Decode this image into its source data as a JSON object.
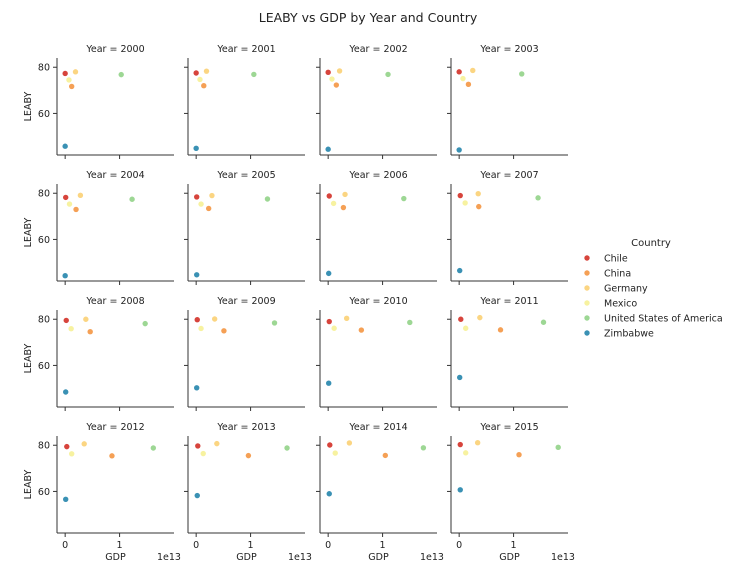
{
  "chart_data": {
    "type": "scatter",
    "title": "LEABY vs GDP by Year and Country",
    "xlabel": "GDP",
    "ylabel": "LEABY",
    "x_offset_label": "1e13",
    "x_unit": 10000000000000.0,
    "xlim": [
      -0.15,
      2.0
    ],
    "ylim": [
      42,
      84
    ],
    "x_ticks": [
      0,
      1
    ],
    "y_ticks": [
      60,
      80
    ],
    "grid": false,
    "legend_title": "Country",
    "legend_position": "right",
    "series": [
      {
        "name": "Chile",
        "color": "#d7443c"
      },
      {
        "name": "China",
        "color": "#f5a055"
      },
      {
        "name": "Germany",
        "color": "#fbd582"
      },
      {
        "name": "Mexico",
        "color": "#f7f2a0"
      },
      {
        "name": "United States of America",
        "color": "#9dd794"
      },
      {
        "name": "Zimbabwe",
        "color": "#3a91b4"
      }
    ],
    "panels": [
      {
        "label": "Year = 2000",
        "points": [
          [
            0.0,
            77.3
          ],
          [
            0.12,
            71.7
          ],
          [
            0.19,
            78.0
          ],
          [
            0.07,
            74.5
          ],
          [
            1.03,
            76.8
          ],
          [
            0.0,
            45.8
          ]
        ]
      },
      {
        "label": "Year = 2001",
        "points": [
          [
            0.0,
            77.5
          ],
          [
            0.14,
            72.0
          ],
          [
            0.19,
            78.3
          ],
          [
            0.07,
            74.7
          ],
          [
            1.06,
            76.9
          ],
          [
            0.0,
            44.9
          ]
        ]
      },
      {
        "label": "Year = 2002",
        "points": [
          [
            0.0,
            77.8
          ],
          [
            0.15,
            72.3
          ],
          [
            0.21,
            78.4
          ],
          [
            0.07,
            74.9
          ],
          [
            1.1,
            76.9
          ],
          [
            0.0,
            44.5
          ]
        ]
      },
      {
        "label": "Year = 2003",
        "points": [
          [
            0.0,
            78.0
          ],
          [
            0.17,
            72.6
          ],
          [
            0.25,
            78.6
          ],
          [
            0.07,
            75.1
          ],
          [
            1.15,
            77.1
          ],
          [
            0.0,
            44.2
          ]
        ]
      },
      {
        "label": "Year = 2004",
        "points": [
          [
            0.01,
            78.2
          ],
          [
            0.2,
            73.0
          ],
          [
            0.28,
            79.1
          ],
          [
            0.08,
            75.3
          ],
          [
            1.23,
            77.4
          ],
          [
            0.0,
            44.3
          ]
        ]
      },
      {
        "label": "Year = 2005",
        "points": [
          [
            0.01,
            78.4
          ],
          [
            0.23,
            73.4
          ],
          [
            0.29,
            79.0
          ],
          [
            0.09,
            75.3
          ],
          [
            1.31,
            77.5
          ],
          [
            0.01,
            44.7
          ]
        ]
      },
      {
        "label": "Year = 2006",
        "points": [
          [
            0.02,
            78.8
          ],
          [
            0.28,
            73.8
          ],
          [
            0.31,
            79.5
          ],
          [
            0.1,
            75.6
          ],
          [
            1.39,
            77.7
          ],
          [
            0.01,
            45.3
          ]
        ]
      },
      {
        "label": "Year = 2007",
        "points": [
          [
            0.02,
            79.0
          ],
          [
            0.36,
            74.2
          ],
          [
            0.35,
            79.8
          ],
          [
            0.11,
            75.8
          ],
          [
            1.45,
            78.0
          ],
          [
            0.01,
            46.5
          ]
        ]
      },
      {
        "label": "Year = 2008",
        "points": [
          [
            0.02,
            79.5
          ],
          [
            0.46,
            74.6
          ],
          [
            0.38,
            80.0
          ],
          [
            0.11,
            75.9
          ],
          [
            1.47,
            78.1
          ],
          [
            0.01,
            48.5
          ]
        ]
      },
      {
        "label": "Year = 2009",
        "points": [
          [
            0.02,
            79.8
          ],
          [
            0.51,
            75.0
          ],
          [
            0.34,
            80.1
          ],
          [
            0.09,
            76.0
          ],
          [
            1.44,
            78.4
          ],
          [
            0.01,
            50.3
          ]
        ]
      },
      {
        "label": "Year = 2010",
        "points": [
          [
            0.02,
            79.0
          ],
          [
            0.61,
            75.3
          ],
          [
            0.34,
            80.4
          ],
          [
            0.11,
            76.1
          ],
          [
            1.5,
            78.6
          ],
          [
            0.01,
            52.3
          ]
        ]
      },
      {
        "label": "Year = 2011",
        "points": [
          [
            0.03,
            80.0
          ],
          [
            0.76,
            75.4
          ],
          [
            0.38,
            80.7
          ],
          [
            0.12,
            76.1
          ],
          [
            1.55,
            78.7
          ],
          [
            0.01,
            54.8
          ]
        ]
      },
      {
        "label": "Year = 2012",
        "points": [
          [
            0.03,
            79.4
          ],
          [
            0.86,
            75.4
          ],
          [
            0.35,
            80.6
          ],
          [
            0.12,
            76.3
          ],
          [
            1.62,
            78.8
          ],
          [
            0.01,
            56.6
          ]
        ]
      },
      {
        "label": "Year = 2013",
        "points": [
          [
            0.03,
            79.7
          ],
          [
            0.96,
            75.5
          ],
          [
            0.38,
            80.7
          ],
          [
            0.13,
            76.4
          ],
          [
            1.67,
            78.8
          ],
          [
            0.02,
            58.2
          ]
        ]
      },
      {
        "label": "Year = 2014",
        "points": [
          [
            0.03,
            80.1
          ],
          [
            1.05,
            75.6
          ],
          [
            0.39,
            81.0
          ],
          [
            0.13,
            76.6
          ],
          [
            1.75,
            78.9
          ],
          [
            0.02,
            59.0
          ]
        ]
      },
      {
        "label": "Year = 2015",
        "points": [
          [
            0.02,
            80.3
          ],
          [
            1.1,
            75.9
          ],
          [
            0.34,
            81.1
          ],
          [
            0.12,
            76.7
          ],
          [
            1.82,
            79.1
          ],
          [
            0.02,
            60.7
          ]
        ]
      }
    ]
  }
}
